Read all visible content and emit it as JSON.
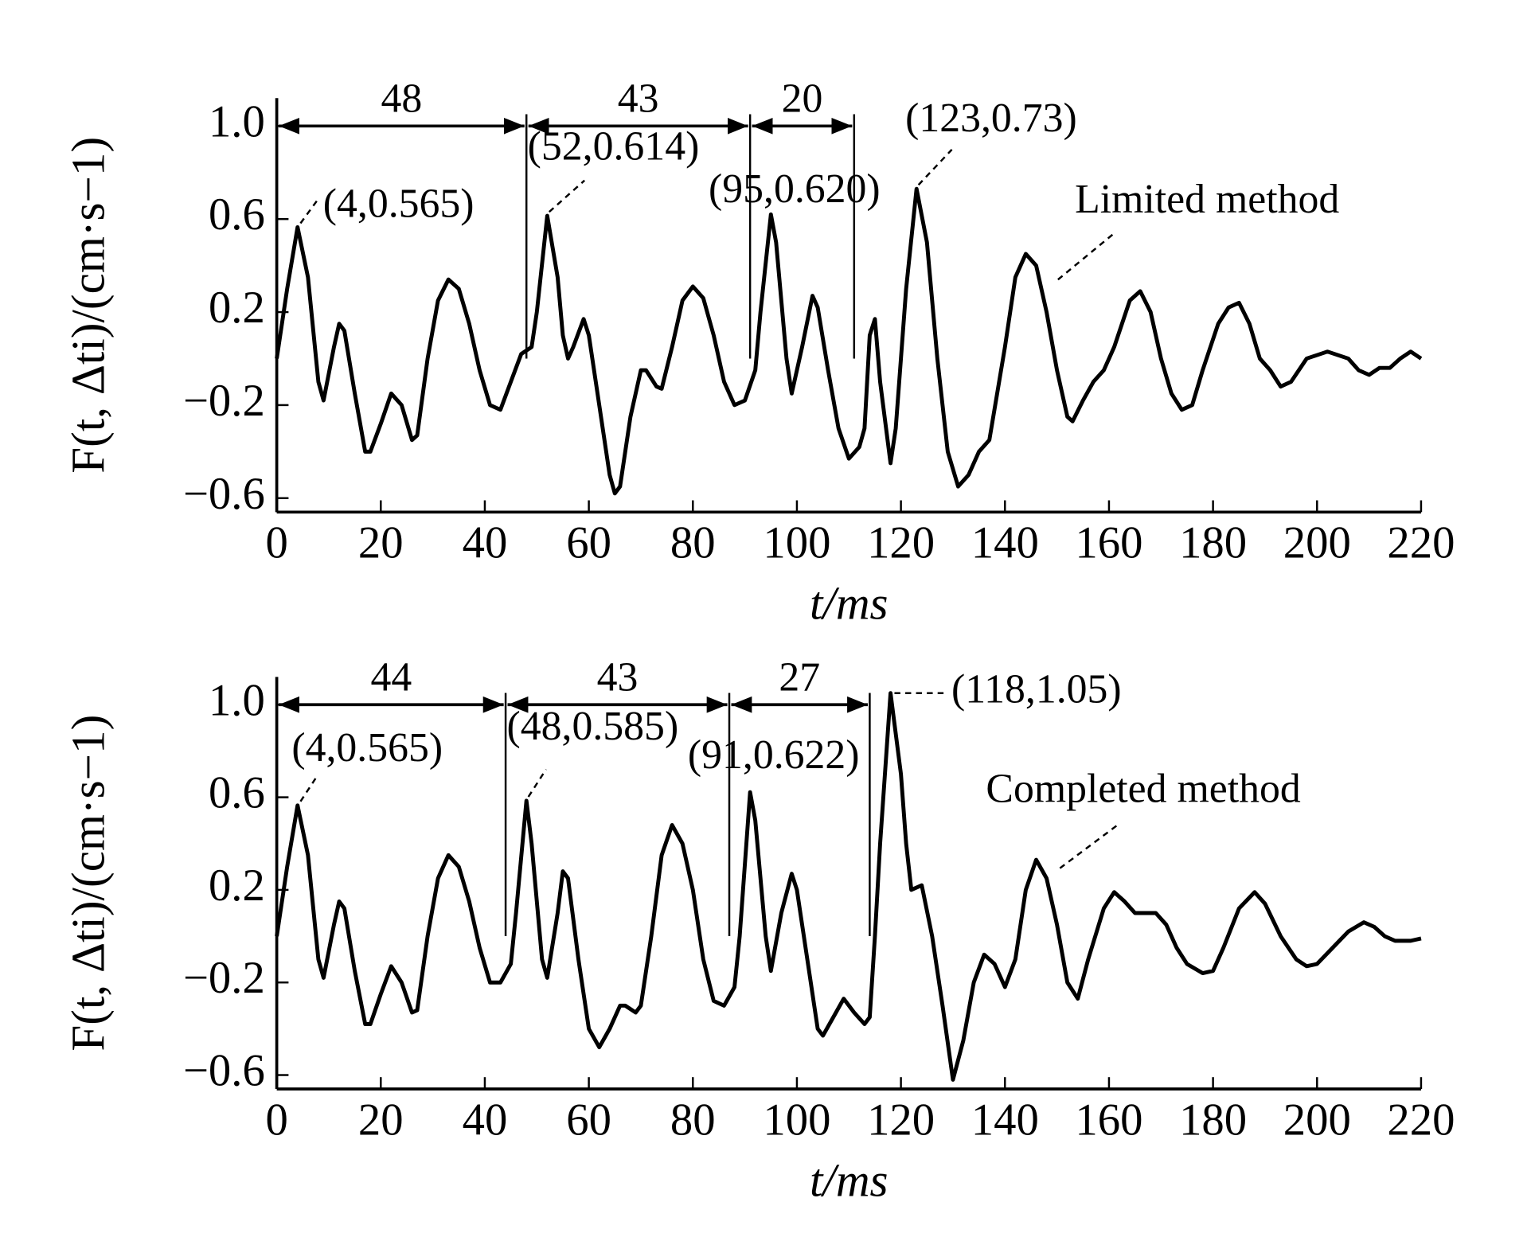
{
  "chart_data": [
    {
      "type": "line",
      "xlabel": "t/ms",
      "ylabel": "F(t, Δti)/(cm·s−1)",
      "xlim": [
        0,
        220
      ],
      "ylim": [
        -0.66,
        1.12
      ],
      "xticks": [
        0,
        20,
        40,
        60,
        80,
        100,
        120,
        140,
        160,
        180,
        200,
        220
      ],
      "yticks": [
        {
          "value": -0.6,
          "label": "−0.6"
        },
        {
          "value": -0.2,
          "label": "−0.2"
        },
        0.2,
        0.6,
        {
          "value": 1,
          "label": "1.0"
        }
      ],
      "series": [
        {
          "name": "Limited method",
          "color": "#000000",
          "x": [
            0,
            2,
            4,
            6,
            8,
            9,
            11,
            12,
            13,
            15,
            17,
            18,
            20,
            22,
            24,
            26,
            27,
            29,
            31,
            33,
            35,
            37,
            39,
            41,
            43,
            45,
            47,
            49,
            50,
            52,
            54,
            55,
            56,
            57,
            59,
            60,
            62,
            64,
            65,
            66,
            68,
            70,
            71,
            73,
            74,
            76,
            78,
            80,
            82,
            84,
            86,
            88,
            90,
            92,
            93,
            95,
            96,
            98,
            99,
            101,
            103,
            104,
            106,
            108,
            110,
            112,
            113,
            114,
            115,
            116,
            118,
            119,
            121,
            123,
            125,
            127,
            129,
            131,
            133,
            135,
            137,
            140,
            142,
            144,
            146,
            148,
            150,
            152,
            153,
            155,
            157,
            159,
            161,
            164,
            166,
            168,
            170,
            172,
            174,
            176,
            178,
            181,
            183,
            185,
            187,
            189,
            191,
            193,
            195,
            198,
            202,
            206,
            208,
            210,
            212,
            214,
            216,
            218,
            220
          ],
          "values": [
            0,
            0.3,
            0.565,
            0.35,
            -0.1,
            -0.18,
            0.05,
            0.15,
            0.12,
            -0.15,
            -0.4,
            -0.4,
            -0.28,
            -0.15,
            -0.2,
            -0.35,
            -0.33,
            0,
            0.25,
            0.34,
            0.3,
            0.15,
            -0.05,
            -0.2,
            -0.22,
            -0.1,
            0.02,
            0.05,
            0.2,
            0.614,
            0.35,
            0.1,
            0,
            0.05,
            0.17,
            0.1,
            -0.2,
            -0.5,
            -0.58,
            -0.55,
            -0.25,
            -0.05,
            -0.05,
            -0.12,
            -0.13,
            0.05,
            0.25,
            0.31,
            0.26,
            0.1,
            -0.1,
            -0.2,
            -0.18,
            -0.05,
            0.2,
            0.62,
            0.5,
            0,
            -0.15,
            0.05,
            0.27,
            0.22,
            -0.05,
            -0.3,
            -0.43,
            -0.38,
            -0.3,
            0.1,
            0.17,
            -0.1,
            -0.45,
            -0.3,
            0.3,
            0.73,
            0.5,
            0,
            -0.4,
            -0.55,
            -0.5,
            -0.4,
            -0.35,
            0.05,
            0.35,
            0.45,
            0.4,
            0.2,
            -0.05,
            -0.25,
            -0.27,
            -0.18,
            -0.1,
            -0.05,
            0.05,
            0.25,
            0.29,
            0.2,
            0,
            -0.15,
            -0.22,
            -0.2,
            -0.05,
            0.15,
            0.22,
            0.24,
            0.15,
            0,
            -0.05,
            -0.12,
            -0.1,
            0,
            0.03,
            0,
            -0.05,
            -0.07,
            -0.04,
            -0.04,
            0,
            0.03,
            0
          ]
        }
      ],
      "annotations": [
        {
          "text": "(4,0.565)",
          "x": 4,
          "y": 0.565
        },
        {
          "text": "(52,0.614)",
          "x": 52,
          "y": 0.614
        },
        {
          "text": "(95,0.620)",
          "x": 95,
          "y": 0.62
        },
        {
          "text": "(123,0.73)",
          "x": 123,
          "y": 0.73
        }
      ],
      "intervals": [
        {
          "value": 48,
          "from": 0,
          "to": 48
        },
        {
          "value": 43,
          "from": 48,
          "to": 91
        },
        {
          "value": 20,
          "from": 91,
          "to": 111
        }
      ]
    },
    {
      "type": "line",
      "xlabel": "t/ms",
      "ylabel": "F(t, Δti)/(cm·s−1)",
      "xlim": [
        0,
        220
      ],
      "ylim": [
        -0.66,
        1.12
      ],
      "xticks": [
        0,
        20,
        40,
        60,
        80,
        100,
        120,
        140,
        160,
        180,
        200,
        220
      ],
      "yticks": [
        {
          "value": -0.6,
          "label": "−0.6"
        },
        {
          "value": -0.2,
          "label": "−0.2"
        },
        0.2,
        0.6,
        {
          "value": 1,
          "label": "1.0"
        }
      ],
      "series": [
        {
          "name": "Completed method",
          "color": "#000000",
          "x": [
            0,
            2,
            4,
            6,
            8,
            9,
            11,
            12,
            13,
            15,
            17,
            18,
            20,
            22,
            24,
            26,
            27,
            29,
            31,
            33,
            35,
            37,
            39,
            41,
            43,
            45,
            46,
            48,
            49,
            51,
            52,
            54,
            55,
            56,
            58,
            60,
            62,
            64,
            66,
            67,
            69,
            70,
            72,
            74,
            76,
            78,
            80,
            82,
            84,
            86,
            88,
            89,
            91,
            92,
            94,
            95,
            97,
            99,
            100,
            102,
            104,
            105,
            107,
            109,
            111,
            113,
            114,
            115,
            116,
            118,
            120,
            121,
            122,
            124,
            126,
            128,
            130,
            132,
            134,
            136,
            138,
            140,
            142,
            144,
            146,
            148,
            150,
            152,
            154,
            156,
            159,
            161,
            163,
            165,
            167,
            169,
            171,
            173,
            175,
            178,
            180,
            182,
            185,
            188,
            190,
            193,
            196,
            198,
            200,
            203,
            206,
            209,
            211,
            213,
            215,
            218,
            220
          ],
          "values": [
            0,
            0.3,
            0.565,
            0.35,
            -0.1,
            -0.18,
            0.05,
            0.15,
            0.12,
            -0.15,
            -0.38,
            -0.38,
            -0.25,
            -0.13,
            -0.2,
            -0.33,
            -0.32,
            0,
            0.25,
            0.35,
            0.3,
            0.15,
            -0.05,
            -0.2,
            -0.2,
            -0.12,
            0.1,
            0.585,
            0.4,
            -0.1,
            -0.18,
            0.1,
            0.28,
            0.25,
            -0.1,
            -0.4,
            -0.48,
            -0.4,
            -0.3,
            -0.3,
            -0.33,
            -0.3,
            0,
            0.35,
            0.48,
            0.4,
            0.2,
            -0.1,
            -0.28,
            -0.3,
            -0.22,
            0,
            0.622,
            0.5,
            0,
            -0.15,
            0.1,
            0.27,
            0.2,
            -0.1,
            -0.4,
            -0.43,
            -0.35,
            -0.27,
            -0.33,
            -0.38,
            -0.35,
            0,
            0.4,
            1.05,
            0.7,
            0.4,
            0.2,
            0.22,
            0,
            -0.3,
            -0.62,
            -0.45,
            -0.2,
            -0.08,
            -0.12,
            -0.22,
            -0.1,
            0.2,
            0.33,
            0.25,
            0.05,
            -0.2,
            -0.27,
            -0.1,
            0.12,
            0.19,
            0.15,
            0.1,
            0.1,
            0.1,
            0.05,
            -0.05,
            -0.12,
            -0.16,
            -0.15,
            -0.05,
            0.12,
            0.19,
            0.14,
            0,
            -0.1,
            -0.13,
            -0.12,
            -0.05,
            0.02,
            0.06,
            0.04,
            0,
            -0.02,
            -0.02,
            -0.01
          ]
        }
      ],
      "annotations": [
        {
          "text": "(4,0.565)",
          "x": 4,
          "y": 0.565
        },
        {
          "text": "(48,0.585)",
          "x": 48,
          "y": 0.585
        },
        {
          "text": "(91,0.622)",
          "x": 91,
          "y": 0.622
        },
        {
          "text": "(118,1.05)",
          "x": 118,
          "y": 1.05
        }
      ],
      "intervals": [
        {
          "value": 44,
          "from": 0,
          "to": 44
        },
        {
          "value": 43,
          "from": 44,
          "to": 87
        },
        {
          "value": 27,
          "from": 87,
          "to": 114
        }
      ]
    }
  ]
}
